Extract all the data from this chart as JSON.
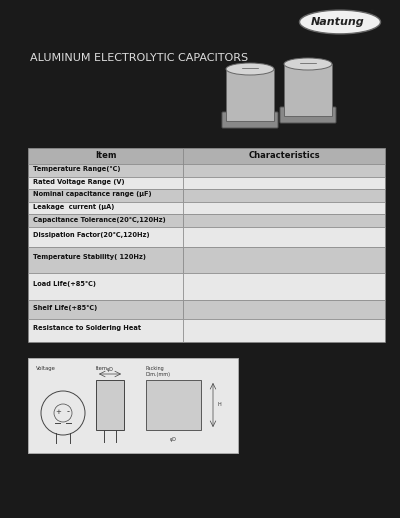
{
  "title": "ALUMINUM ELECTROLYTIC CAPACITORS",
  "brand": "Nantung",
  "bg_color": "#1a1a1a",
  "page_bg": "#1a1a1a",
  "table_header": [
    "Item",
    "Characteristics"
  ],
  "table_rows": [
    "Temperature Range(℃)",
    "Rated Voltage Range (V)",
    "Nominal capacitance range (μF)",
    "Leakage  current (μA)",
    "Capacitance Tolerance(20℃,120Hz)",
    "Dissipation Factor(20℃,120Hz)",
    "Temperature Stability( 120Hz)",
    "Load Life(+85℃)",
    "Shelf Life(+85℃)",
    "Resistance to Soldering Heat"
  ],
  "row_heights_rel": [
    1.0,
    1.0,
    1.0,
    1.0,
    1.0,
    1.6,
    2.0,
    2.2,
    1.5,
    1.8
  ],
  "table_header_bg": "#b0b0b0",
  "row_bg_odd": "#c8c8c8",
  "row_bg_even": "#e8e8e8",
  "table_border": "#888888",
  "white": "#ffffff",
  "text_color": "#111111",
  "logo_border": "#666666"
}
